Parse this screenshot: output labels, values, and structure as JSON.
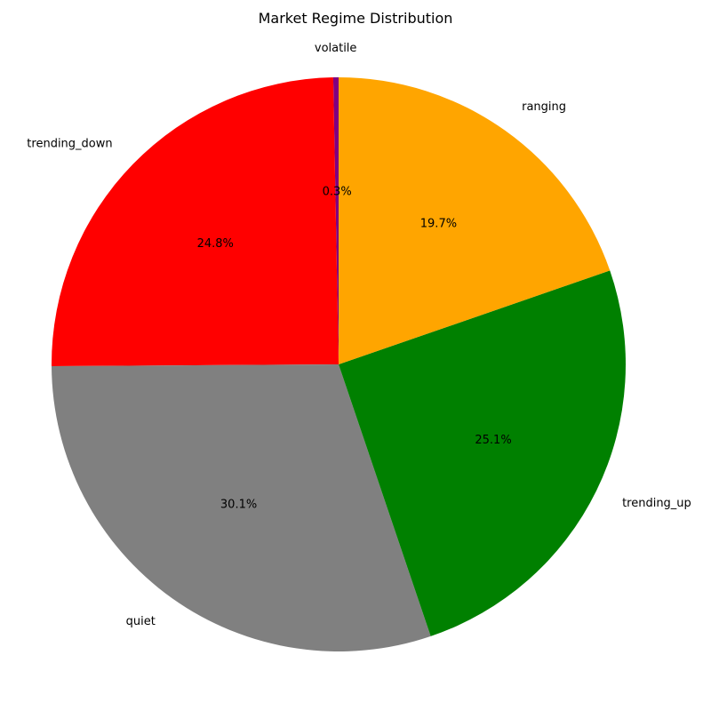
{
  "chart_data": {
    "type": "pie",
    "title": "Market Regime Distribution",
    "start_angle": 90,
    "direction": "counterclockwise",
    "slices": [
      {
        "label": "volatile",
        "value": 0.3,
        "percent_label": "0.3%",
        "color": "#800080"
      },
      {
        "label": "trending_down",
        "value": 24.8,
        "percent_label": "24.8%",
        "color": "#ff0000"
      },
      {
        "label": "quiet",
        "value": 30.1,
        "percent_label": "30.1%",
        "color": "#808080"
      },
      {
        "label": "trending_up",
        "value": 25.1,
        "percent_label": "25.1%",
        "color": "#008000"
      },
      {
        "label": "ranging",
        "value": 19.7,
        "percent_label": "19.7%",
        "color": "#ffa500"
      }
    ]
  }
}
